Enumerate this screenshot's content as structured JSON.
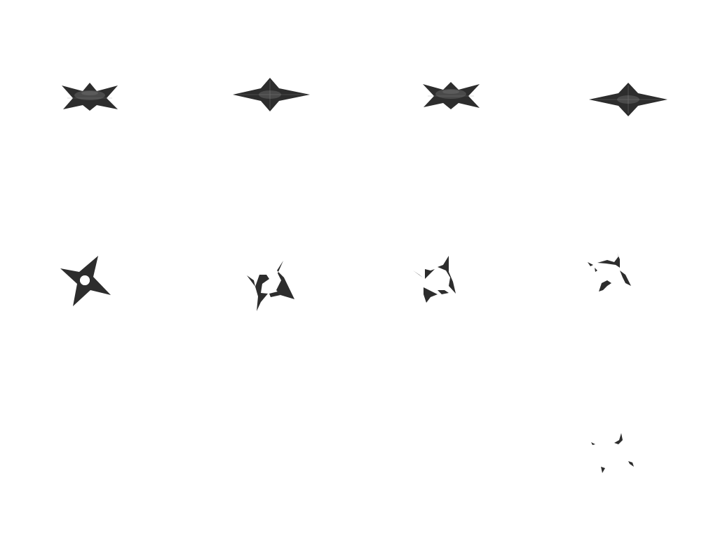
{
  "sheet": {
    "background": "#ffffff",
    "sprite_color": "#2d2d2d",
    "columns": 4,
    "rows": 3
  },
  "frames": [
    {
      "name": "shuriken-spin-frame-1",
      "icon": "shuriken-edge-on-icon",
      "state": "spinning"
    },
    {
      "name": "shuriken-spin-frame-2",
      "icon": "shuriken-edge-on-icon",
      "state": "spinning"
    },
    {
      "name": "shuriken-spin-frame-3",
      "icon": "shuriken-edge-on-icon",
      "state": "spinning"
    },
    {
      "name": "shuriken-spin-frame-4",
      "icon": "shuriken-edge-on-icon",
      "state": "spinning"
    },
    {
      "name": "shuriken-flat-frame",
      "icon": "shuriken-icon",
      "state": "intact"
    },
    {
      "name": "shuriken-break-frame-1",
      "icon": "shuriken-breaking-icon",
      "state": "breaking"
    },
    {
      "name": "shuriken-break-frame-2",
      "icon": "shuriken-breaking-icon",
      "state": "breaking"
    },
    {
      "name": "shuriken-break-frame-3",
      "icon": "shuriken-fragments-icon",
      "state": "shattered"
    },
    {
      "name": "shuriken-break-frame-4",
      "icon": "shuriken-fragments-icon",
      "state": "shattered"
    }
  ]
}
